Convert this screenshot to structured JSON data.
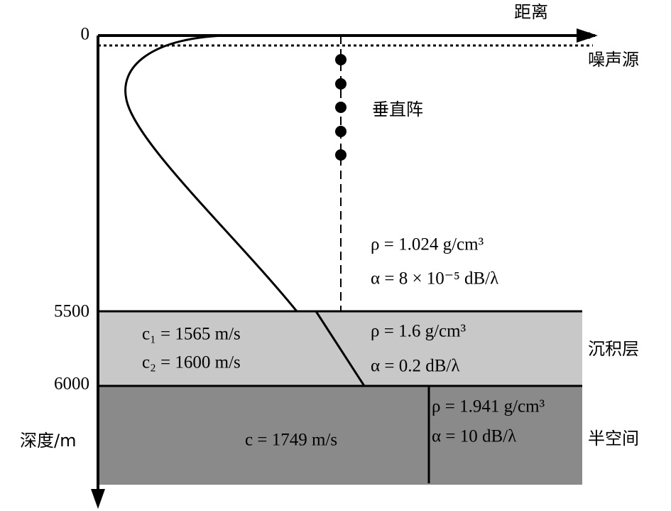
{
  "axes": {
    "x_label": "距离",
    "origin_label": "0",
    "y_label": "深度/m"
  },
  "source": {
    "label": "噪声源"
  },
  "array": {
    "label": "垂直阵"
  },
  "water": {
    "bottom_depth_label": "5500",
    "density": "ρ = 1.024 g/cm³",
    "attenuation": "α = 8 × 10⁻⁵ dB/λ"
  },
  "sediment": {
    "label": "沉积层",
    "bottom_depth_label": "6000",
    "c1": "c₁ = 1565 m/s",
    "c2": "c₂ = 1600 m/s",
    "density": "ρ = 1.6 g/cm³",
    "attenuation": "α = 0.2 dB/λ"
  },
  "halfspace": {
    "label": "半空间",
    "speed": "c = 1749 m/s",
    "density": "ρ = 1.941 g/cm³",
    "attenuation": "α = 10 dB/λ"
  }
}
